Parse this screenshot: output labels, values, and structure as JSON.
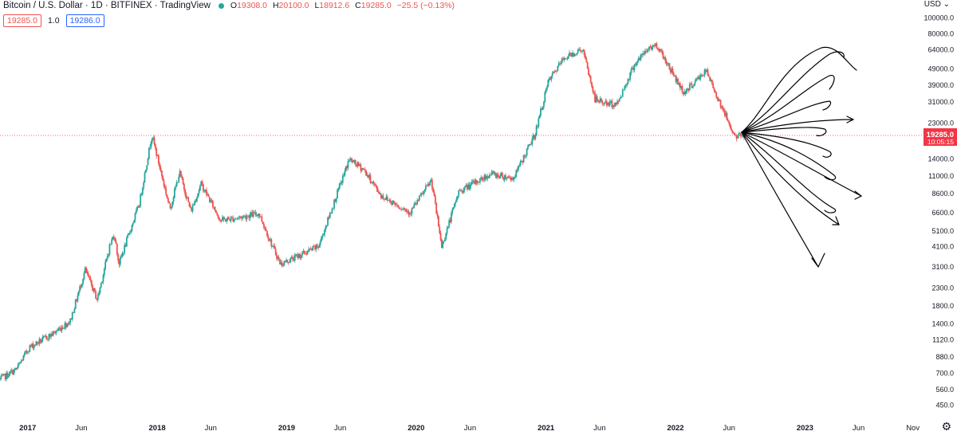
{
  "header": {
    "title": "Bitcoin / U.S. Dollar · 1D · BITFINEX · TradingView",
    "open_label": "O",
    "open": "19308.0",
    "high_label": "H",
    "high": "20100.0",
    "low_label": "L",
    "low": "18912.6",
    "close_label": "C",
    "close": "19285.0",
    "change": "−25.5 (−0.13%)"
  },
  "trade": {
    "sell_price": "19285.0",
    "quantity": "1.0",
    "buy_price": "19286.0"
  },
  "price_axis": {
    "currency": "USD",
    "current_price": "19285.0",
    "countdown": "10:05:15"
  },
  "colors": {
    "up": "#26a69a",
    "down": "#ef5350",
    "current": "#f23645",
    "drawing": "#000000"
  },
  "icons": [
    "live-status-icon",
    "settings-gear-icon",
    "currency-dropdown-icon"
  ],
  "chart_data": {
    "type": "candlestick",
    "scale": "log",
    "ylim": [
      450,
      100000
    ],
    "yticks": [
      450,
      560,
      700,
      880,
      1120,
      1400,
      1800,
      2300,
      3100,
      4100,
      5100,
      6600,
      8600,
      11000,
      14000,
      19285,
      23000,
      31000,
      39000,
      49000,
      64000,
      80000,
      100000
    ],
    "ytick_labels": [
      "450.0",
      "560.0",
      "700.0",
      "880.0",
      "1120.0",
      "1400.0",
      "1800.0",
      "2300.0",
      "3100.0",
      "4100.0",
      "5100.0",
      "6600.0",
      "8600.0",
      "11000.0",
      "14000.0",
      "19285.0",
      "23000.0",
      "31000.0",
      "39000.0",
      "49000.0",
      "64000.0",
      "80000.0",
      "100000.0"
    ],
    "xticks": [
      "2017",
      "Jun",
      "2018",
      "Jun",
      "2019",
      "Jun",
      "2020",
      "Jun",
      "2021",
      "Jun",
      "2022",
      "Jun",
      "2023",
      "Jun",
      "Nov"
    ],
    "xtick_dates": [
      "2017-01-01",
      "2017-06-01",
      "2018-01-01",
      "2018-06-01",
      "2019-01-01",
      "2019-06-01",
      "2020-01-01",
      "2020-06-01",
      "2021-01-01",
      "2021-06-01",
      "2022-01-01",
      "2022-06-01",
      "2023-01-01",
      "2023-06-01",
      "2023-11-01"
    ],
    "xlim": [
      "2016-10-15",
      "2023-12-01"
    ],
    "series": {
      "dates": [
        "2016-10-15",
        "2016-12-01",
        "2017-01-05",
        "2017-03-10",
        "2017-05-01",
        "2017-06-12",
        "2017-07-16",
        "2017-08-20",
        "2017-09-02",
        "2017-09-15",
        "2017-11-12",
        "2017-12-17",
        "2018-02-06",
        "2018-03-05",
        "2018-04-06",
        "2018-05-05",
        "2018-06-29",
        "2018-08-14",
        "2018-10-15",
        "2018-11-20",
        "2018-12-15",
        "2019-04-01",
        "2019-06-26",
        "2019-08-06",
        "2019-09-25",
        "2019-12-15",
        "2020-02-13",
        "2020-03-13",
        "2020-04-30",
        "2020-07-30",
        "2020-10-01",
        "2020-11-30",
        "2021-01-08",
        "2021-02-21",
        "2021-04-14",
        "2021-05-19",
        "2021-06-22",
        "2021-07-20",
        "2021-09-07",
        "2021-10-20",
        "2021-11-10",
        "2022-01-24",
        "2022-03-28",
        "2022-05-12",
        "2022-06-18",
        "2022-07-14"
      ],
      "close": [
        640,
        740,
        1000,
        1200,
        1450,
        2950,
        1950,
        4100,
        4900,
        3200,
        7500,
        19500,
        6900,
        11500,
        6700,
        9800,
        5900,
        6100,
        6500,
        4200,
        3200,
        4100,
        13800,
        12000,
        8300,
        6600,
        10300,
        4100,
        8800,
        11300,
        10600,
        19400,
        41000,
        57000,
        64500,
        32000,
        30000,
        29800,
        52000,
        66000,
        68000,
        35000,
        47500,
        28500,
        18900,
        19285
      ]
    }
  }
}
